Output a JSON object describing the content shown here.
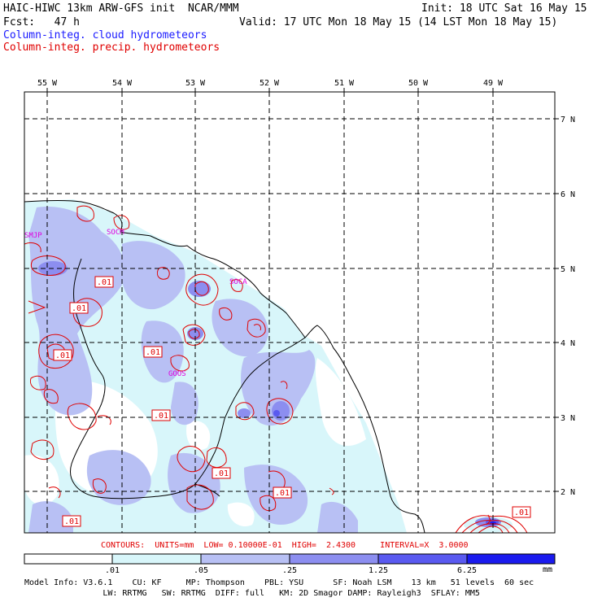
{
  "header": {
    "line1_left": "HAIC-HIWC 13km ARW-GFS init  NCAR/MMM",
    "line1_right": "Init: 18 UTC Sat 16 May 15",
    "line2_left": "Fcst:   47 h",
    "line2_right": "Valid: 17 UTC Mon 18 May 15 (14 LST Mon 18 May 15)",
    "legend_cloud": "Column-integ. cloud hydrometeors",
    "legend_precip": "Column-integ. precip. hydrometeors"
  },
  "colors": {
    "cloud_text": "#1a1aff",
    "precip_text": "#e00000",
    "station_text": "#e000e0",
    "shade_1": "#d8f6fa",
    "shade_2": "#b8c0f4",
    "shade_3": "#8c8ef0",
    "shade_4": "#5a5af0",
    "shade_5": "#1a1aee"
  },
  "map": {
    "lon_labels": [
      "55 W",
      "54 W",
      "53 W",
      "52 W",
      "51 W",
      "50 W",
      "49 W"
    ],
    "lat_labels": [
      "7 N",
      "6 N",
      "5 N",
      "4 N",
      "3 N",
      "2 N"
    ],
    "stations": [
      "SMJP",
      "SOCM",
      "SOCA",
      "GOOS"
    ],
    "contour_labels": [
      ".01",
      ".01",
      ".01",
      ".01",
      ".01",
      ".01",
      ".01",
      ".01",
      ".01"
    ]
  },
  "contours_info": "CONTOURS:  UNITS=mm  LOW= 0.10000E-01  HIGH=  2.4300     INTERVAL=X  3.0000",
  "colorbar": {
    "ticks": [
      ".01",
      ".05",
      ".25",
      "1.25",
      "6.25"
    ],
    "unit": "mm"
  },
  "footer": {
    "line1": "Model Info: V3.6.1    CU: KF     MP: Thompson    PBL: YSU      SF: Noah LSM    13 km   51 levels  60 sec",
    "line2": "                LW: RRTMG   SW: RRTMG  DIFF: full   KM: 2D Smagor DAMP: Rayleigh3  SFLAY: MM5"
  }
}
